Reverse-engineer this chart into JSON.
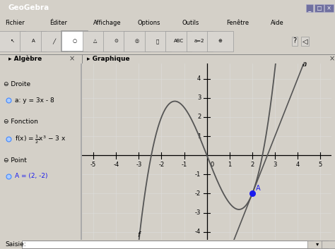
{
  "title": "GeoGebra",
  "window_bg": "#d4d0c8",
  "toolbar_bg": "#d4d0c8",
  "graph_bg": "#ffffff",
  "panel_bg": "#ffffff",
  "title_bar_bg": "#0a246a",
  "axes_color": "#000000",
  "curve_color": "#555555",
  "tangent_color": "#555555",
  "point_color": "#1a1aee",
  "point_label_color": "#1a1aee",
  "grid_color": "#cccccc",
  "xmin": -5.5,
  "xmax": 5.5,
  "ymin": -4.4,
  "ymax": 4.8,
  "xticks": [
    -5,
    -4,
    -3,
    -2,
    -1,
    1,
    2,
    3,
    4,
    5
  ],
  "yticks": [
    -4,
    -3,
    -2,
    -1,
    1,
    2,
    3,
    4
  ],
  "point_x": 2,
  "point_y": -2,
  "point_label": "A",
  "func_label": "f",
  "tangent_label": "a"
}
